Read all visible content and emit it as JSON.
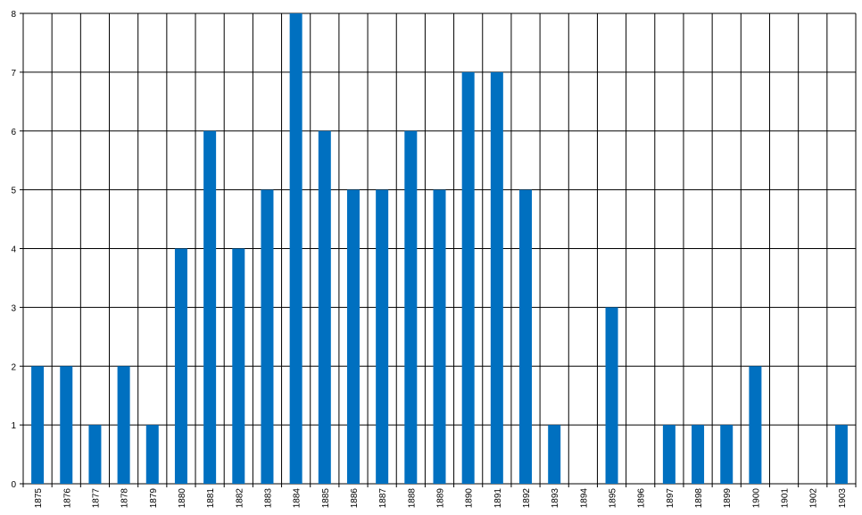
{
  "chart_data": {
    "type": "bar",
    "categories": [
      "1875",
      "1876",
      "1877",
      "1878",
      "1879",
      "1880",
      "1881",
      "1882",
      "1883",
      "1884",
      "1885",
      "1886",
      "1887",
      "1888",
      "1889",
      "1890",
      "1891",
      "1892",
      "1893",
      "1894",
      "1895",
      "1896",
      "1897",
      "1898",
      "1899",
      "1900",
      "1901",
      "1902",
      "1903"
    ],
    "values": [
      2,
      2,
      1,
      2,
      1,
      4,
      6,
      4,
      5,
      8,
      6,
      5,
      5,
      6,
      5,
      7,
      7,
      5,
      1,
      0,
      3,
      0,
      1,
      1,
      1,
      2,
      0,
      0,
      1
    ],
    "color": "#0070c0",
    "ylim": [
      0,
      8
    ],
    "yticks": [
      0,
      1,
      2,
      3,
      4,
      5,
      6,
      7,
      8
    ],
    "grid": true
  }
}
